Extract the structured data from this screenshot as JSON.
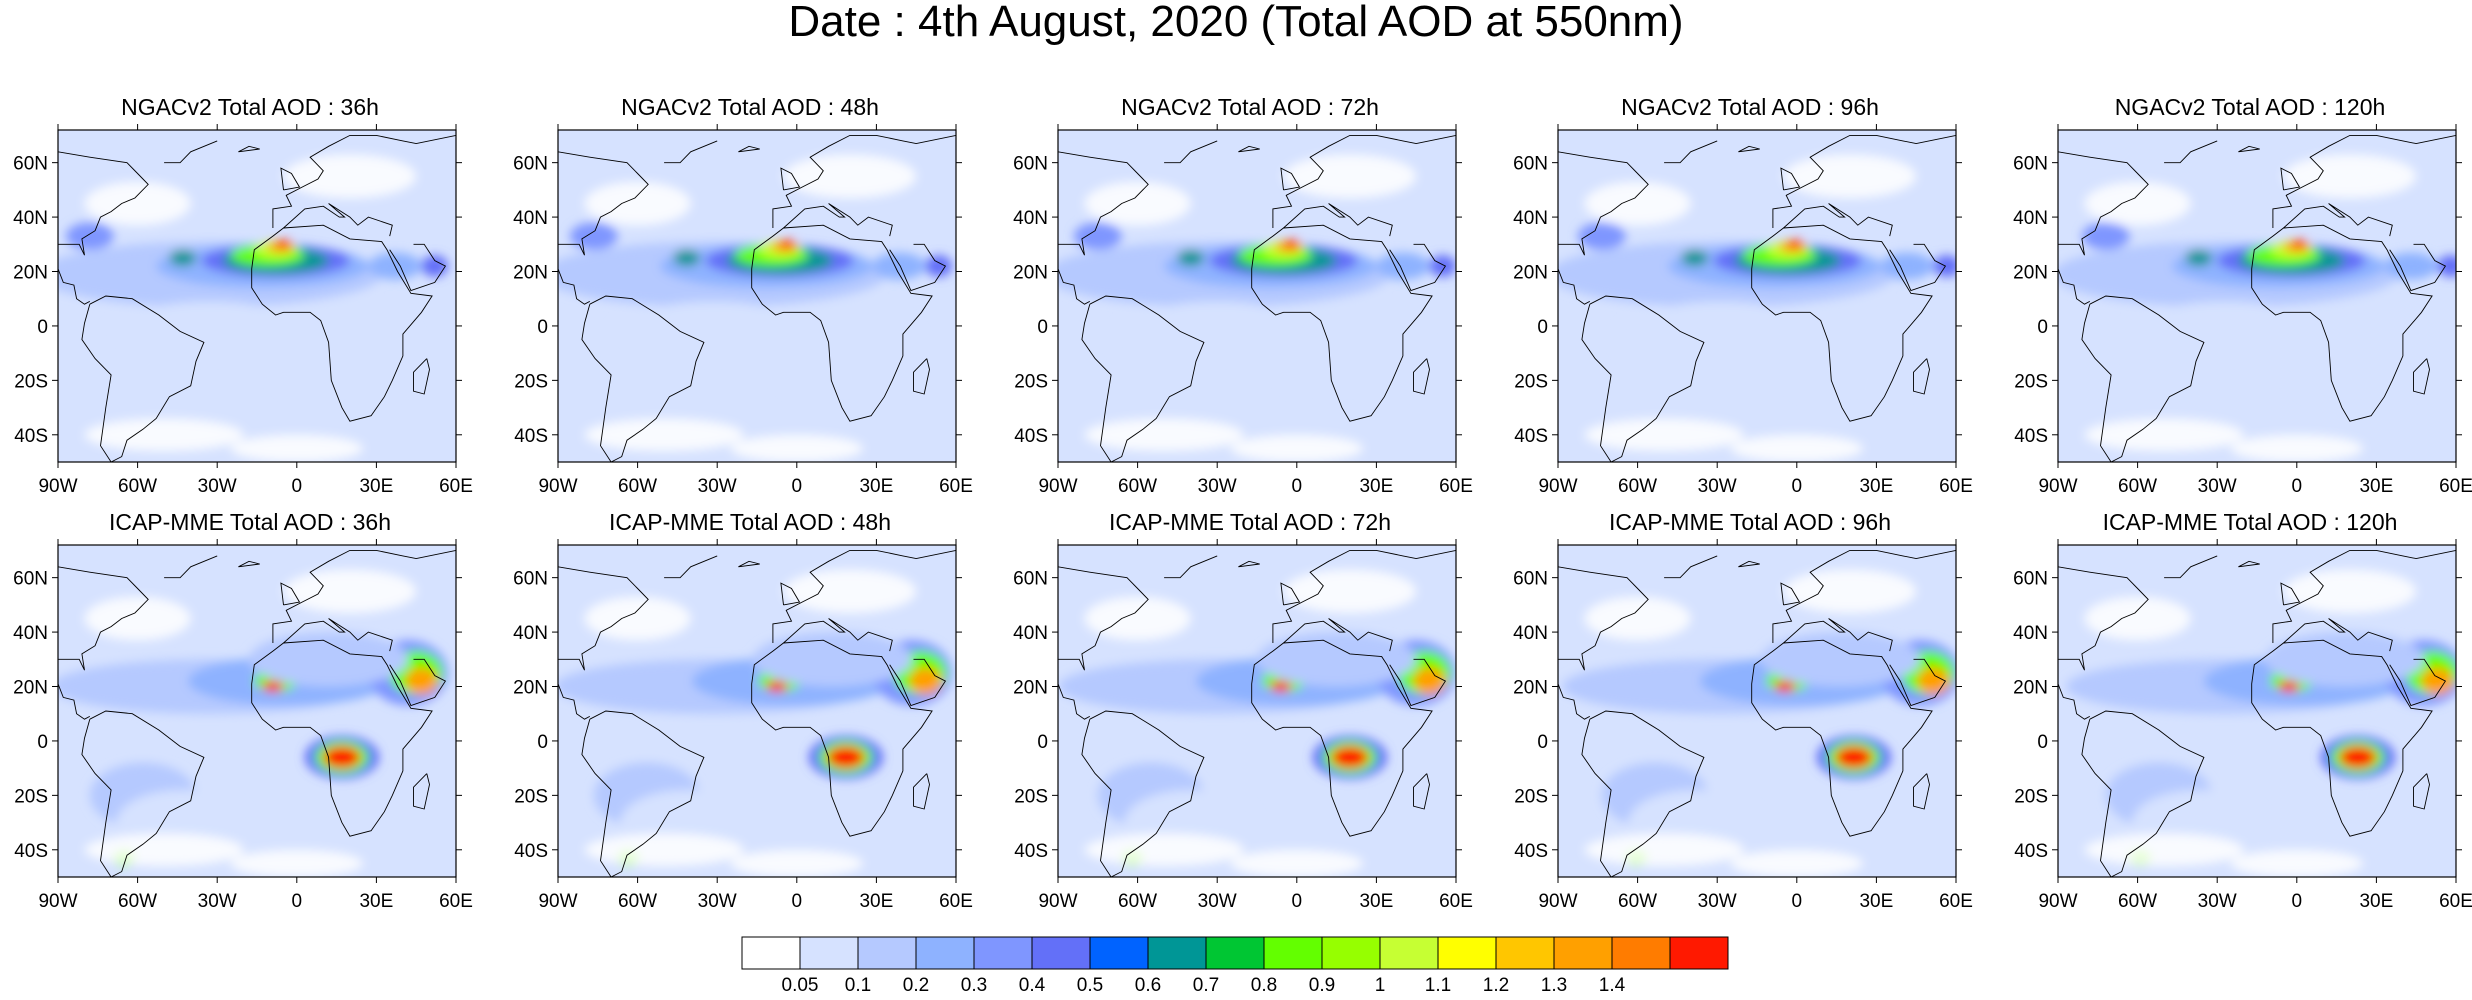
{
  "title": "Date : 4th August, 2020 (Total AOD at 550nm)",
  "lat_ticks": [
    "60N",
    "40N",
    "20N",
    "0",
    "20S",
    "40S"
  ],
  "lon_ticks": [
    "90W",
    "60W",
    "30W",
    "0",
    "30E",
    "60E"
  ],
  "panels": [
    {
      "title": "NGACv2 Total AOD : 36h",
      "model": "NGACv2",
      "lead": "36h"
    },
    {
      "title": "NGACv2 Total AOD : 48h",
      "model": "NGACv2",
      "lead": "48h"
    },
    {
      "title": "NGACv2 Total AOD : 72h",
      "model": "NGACv2",
      "lead": "72h"
    },
    {
      "title": "NGACv2 Total AOD : 96h",
      "model": "NGACv2",
      "lead": "96h"
    },
    {
      "title": "NGACv2 Total AOD : 120h",
      "model": "NGACv2",
      "lead": "120h"
    },
    {
      "title": "ICAP-MME Total AOD : 36h",
      "model": "ICAP-MME",
      "lead": "36h"
    },
    {
      "title": "ICAP-MME Total AOD : 48h",
      "model": "ICAP-MME",
      "lead": "48h"
    },
    {
      "title": "ICAP-MME Total AOD : 72h",
      "model": "ICAP-MME",
      "lead": "72h"
    },
    {
      "title": "ICAP-MME Total AOD : 96h",
      "model": "ICAP-MME",
      "lead": "96h"
    },
    {
      "title": "ICAP-MME Total AOD : 120h",
      "model": "ICAP-MME",
      "lead": "120h"
    }
  ],
  "colorbar": {
    "labels": [
      "0.05",
      "0.1",
      "0.2",
      "0.3",
      "0.4",
      "0.5",
      "0.6",
      "0.7",
      "0.8",
      "0.9",
      "1",
      "1.1",
      "1.2",
      "1.3",
      "1.4"
    ],
    "colors": [
      "#ffffff",
      "#d6e2ff",
      "#b5c9ff",
      "#8eb2ff",
      "#7f96ff",
      "#6370f8",
      "#0063ff",
      "#009696",
      "#00c633",
      "#63ff00",
      "#96ff00",
      "#c6ff33",
      "#ffff00",
      "#ffc600",
      "#ffa000",
      "#ff7c00",
      "#ff1900"
    ]
  }
}
